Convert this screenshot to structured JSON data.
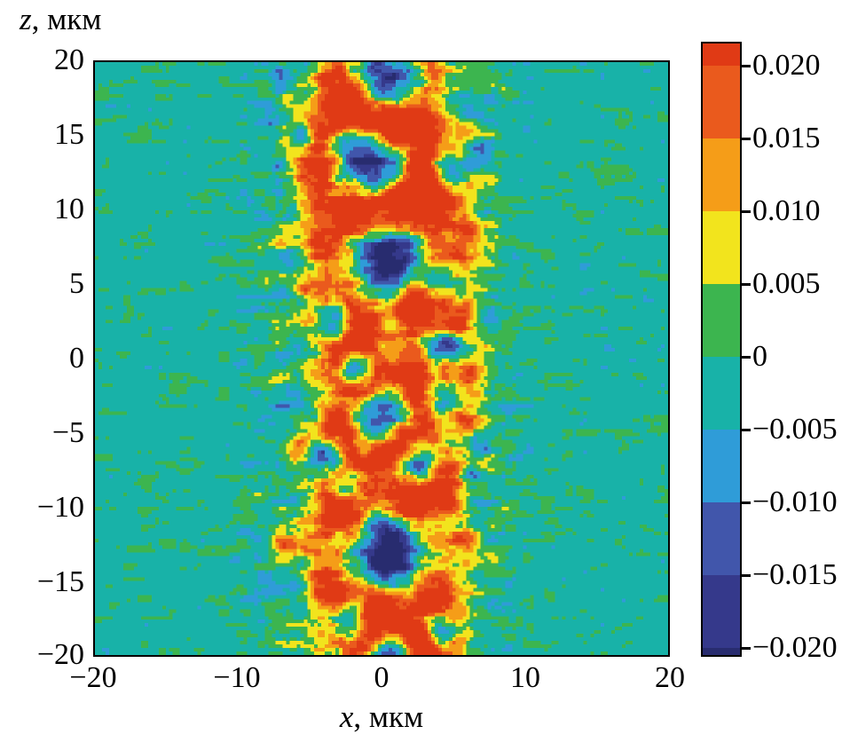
{
  "figure": {
    "background": "#ffffff"
  },
  "zaxis": {
    "title_variable": "z",
    "title_unit": ", мкм",
    "ticks": [
      "20",
      "15",
      "10",
      "5",
      "0",
      "−5",
      "−10",
      "−15",
      "−20"
    ]
  },
  "xaxis": {
    "title_variable": "x",
    "title_unit": ", мкм",
    "ticks": [
      "−20",
      "−10",
      "0",
      "10",
      "20"
    ]
  },
  "colorbar": {
    "tick_labels": [
      "0.020",
      "0.015",
      "0.010",
      "0.005",
      "0",
      "−0.005",
      "−0.010",
      "−0.015",
      "−0.020"
    ]
  },
  "chart_data": {
    "type": "heatmap",
    "xlabel": "x, мкм",
    "ylabel": "z, мкм",
    "xlim": [
      -20,
      20
    ],
    "zlim": [
      -20,
      20
    ],
    "x_ticks": [
      -20,
      -10,
      0,
      10,
      20
    ],
    "z_ticks": [
      20,
      15,
      10,
      5,
      0,
      -5,
      -10,
      -15,
      -20
    ],
    "value_range": [
      -0.02,
      0.02
    ],
    "levels": [
      -0.02,
      -0.015,
      -0.01,
      -0.005,
      0,
      0.005,
      0.01,
      0.015,
      0.02
    ],
    "palette": [
      "#282c6f",
      "#35398b",
      "#4156ab",
      "#2f9cd8",
      "#18b2a8",
      "#3cb54f",
      "#f2e41d",
      "#f59d18",
      "#ea5a1d",
      "#e03a15"
    ],
    "grid": false,
    "legend": "colorbar-right",
    "field": {
      "description": "Turbulent vertical filament centered near x=0 (|x|<9 мкм): dark negative vortex cores ringed by positive (yellow/orange/red) halos, on a near-zero teal background with weak horizontal speckle noise.",
      "band_halfwidth": 8.6,
      "band_bias": 0.0015,
      "background_bias": -0.0018,
      "background_noise_amp": 0.003,
      "band_noise_amp": 0.0055,
      "ring_ratio": 0.62,
      "vortex_cores": [
        [
          0.5,
          18.6,
          2.1,
          0.024
        ],
        [
          -0.8,
          13.4,
          2.4,
          0.026
        ],
        [
          4.8,
          12.8,
          1.3,
          0.018
        ],
        [
          6.8,
          13.8,
          1.0,
          0.014
        ],
        [
          0.6,
          6.9,
          2.4,
          0.026
        ],
        [
          4.2,
          4.8,
          1.4,
          0.018
        ],
        [
          -3.4,
          2.6,
          1.1,
          0.016
        ],
        [
          4.6,
          0.8,
          1.4,
          0.016
        ],
        [
          -1.8,
          -0.6,
          1.0,
          0.014
        ],
        [
          4.6,
          -2.6,
          1.2,
          0.016
        ],
        [
          0.2,
          -3.9,
          1.6,
          0.02
        ],
        [
          -4.0,
          -6.6,
          1.1,
          0.016
        ],
        [
          2.2,
          -7.0,
          1.3,
          0.016
        ],
        [
          -2.4,
          -8.6,
          1.0,
          0.014
        ],
        [
          0.5,
          -13.0,
          2.6,
          0.027
        ],
        [
          -2.0,
          -17.6,
          1.2,
          0.016
        ],
        [
          4.2,
          -18.2,
          1.1,
          0.015
        ],
        [
          0.5,
          -19.8,
          1.4,
          0.018
        ],
        [
          -5.6,
          14.8,
          0.8,
          0.012
        ],
        [
          7.0,
          -5.8,
          0.8,
          0.012
        ],
        [
          6.3,
          -7.8,
          0.7,
          0.011
        ]
      ],
      "hot_spots": [
        [
          0.5,
          15.8,
          1.5,
          0.022
        ],
        [
          -3.0,
          16.5,
          1.0,
          0.012
        ],
        [
          -4.0,
          13.0,
          1.2,
          0.014
        ],
        [
          2.8,
          10.6,
          1.4,
          0.022
        ],
        [
          -2.0,
          10.0,
          1.1,
          0.016
        ],
        [
          5.8,
          9.0,
          1.1,
          0.015
        ],
        [
          -4.5,
          7.5,
          1.0,
          0.013
        ],
        [
          2.2,
          3.2,
          1.1,
          0.015
        ],
        [
          -1.5,
          1.5,
          1.3,
          0.014
        ],
        [
          1.0,
          -0.3,
          1.4,
          0.016
        ],
        [
          -4.8,
          -1.0,
          1.0,
          0.014
        ],
        [
          5.5,
          -4.0,
          1.0,
          0.013
        ],
        [
          -3.5,
          -4.5,
          1.2,
          0.016
        ],
        [
          1.5,
          -5.8,
          1.2,
          0.015
        ],
        [
          4.2,
          -9.3,
          1.1,
          0.016
        ],
        [
          -3.0,
          -10.5,
          1.3,
          0.02
        ],
        [
          2.0,
          -10.3,
          1.2,
          0.018
        ],
        [
          -4.2,
          -15.0,
          1.1,
          0.015
        ],
        [
          3.8,
          -15.8,
          1.2,
          0.018
        ],
        [
          0.0,
          -16.8,
          1.3,
          0.02
        ],
        [
          2.6,
          -19.3,
          1.2,
          0.018
        ],
        [
          -4.0,
          18.5,
          0.9,
          0.012
        ],
        [
          5.5,
          2.0,
          0.9,
          0.013
        ],
        [
          -5.5,
          5.0,
          0.9,
          0.012
        ],
        [
          -6.5,
          17.2,
          0.8,
          0.013
        ],
        [
          -6.8,
          -12.5,
          0.9,
          0.014
        ],
        [
          6.0,
          -12.0,
          0.9,
          0.013
        ]
      ]
    }
  }
}
